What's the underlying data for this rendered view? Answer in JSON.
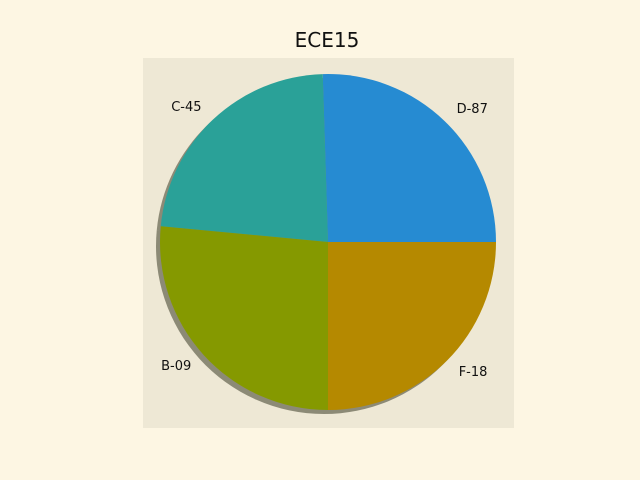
{
  "chart_data": {
    "type": "pie",
    "title": "ECE15",
    "shadow": true,
    "start_angle_deg": 0,
    "direction": "counterclockwise",
    "slices": [
      {
        "label": "D-87",
        "value": 25.5,
        "color": "#268bd2"
      },
      {
        "label": "C-45",
        "value": 23.0,
        "color": "#2aa198"
      },
      {
        "label": "B-09",
        "value": 26.5,
        "color": "#859900"
      },
      {
        "label": "F-18",
        "value": 25.0,
        "color": "#b58900"
      }
    ],
    "axes_facecolor": "#eee8d5",
    "figure_facecolor": "#fdf6e3"
  }
}
